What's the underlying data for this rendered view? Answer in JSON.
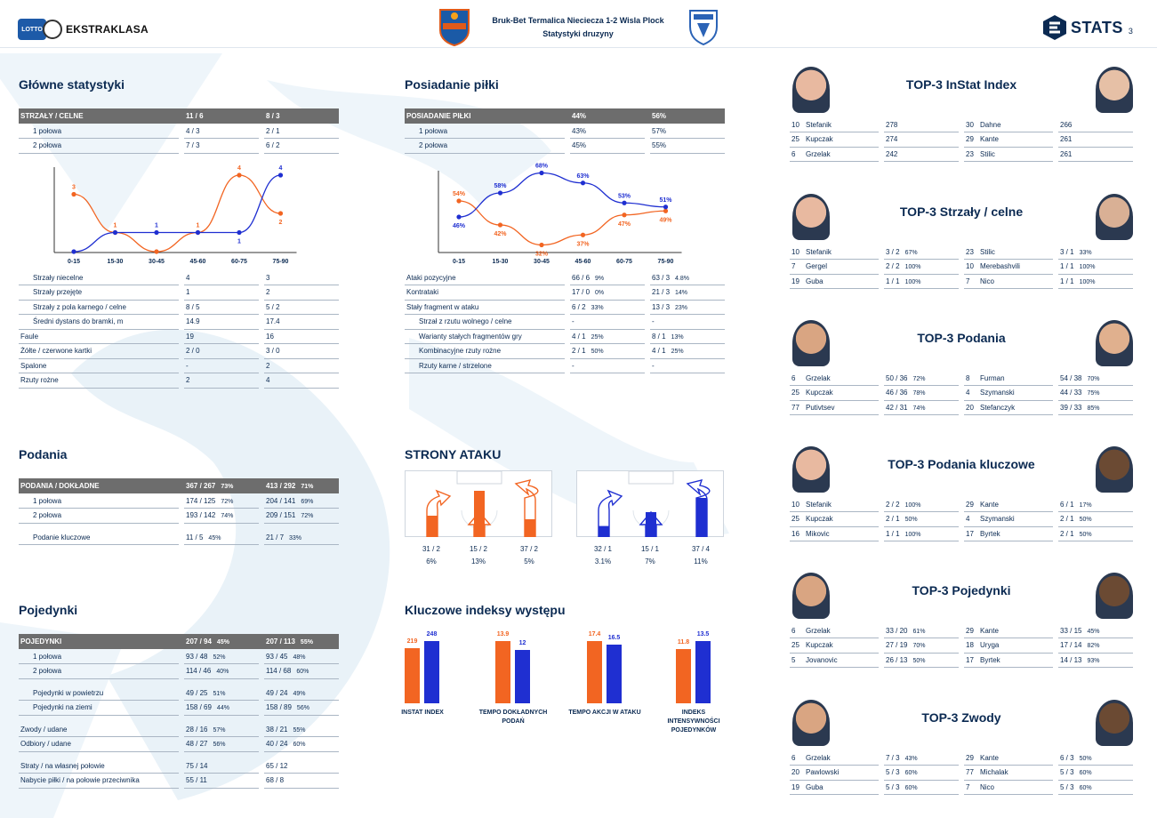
{
  "header": {
    "league": "EKSTRAKLASA",
    "lotto": "LOTTO",
    "match": "Bruk-Bet Termalica Nieciecza 1-2 Wisla Plock",
    "subtitle": "Statystyki druzyny",
    "brand": "STATS",
    "page": "3"
  },
  "colors": {
    "home": "#f26522",
    "away": "#1f2fd1",
    "head_bg": "#6d6d6d",
    "text": "#0b2a52"
  },
  "main": {
    "title": "Główne statystyki",
    "head": [
      "STRZAŁY / CELNE",
      "11 / 6",
      "8 / 3"
    ],
    "halves": [
      [
        "1 połowa",
        "4 / 3",
        "2 / 1"
      ],
      [
        "2 połowa",
        "7 / 3",
        "6 / 2"
      ]
    ],
    "rows": [
      [
        "Strzały niecelne",
        "4",
        "3",
        true
      ],
      [
        "Strzały przejęte",
        "1",
        "2",
        true
      ],
      [
        "Strzały z pola karnego / celne",
        "8 / 5",
        "5 / 2",
        true
      ],
      [
        "Średni dystans do bramki, m",
        "14.9",
        "17.4",
        true
      ],
      [
        "Faule",
        "19",
        "16",
        false
      ],
      [
        "Żółte / czerwone kartki",
        "2 / 0",
        "3 / 0",
        false
      ],
      [
        "Spalone",
        "-",
        "2",
        false
      ],
      [
        "Rzuty rożne",
        "2",
        "4",
        false
      ]
    ]
  },
  "shots_chart": {
    "type": "line",
    "x": [
      "0-15",
      "15-30",
      "30-45",
      "45-60",
      "60-75",
      "75-90"
    ],
    "series": [
      {
        "values": [
          3,
          1,
          0,
          1,
          4,
          2
        ]
      },
      {
        "values": [
          0,
          1,
          1,
          1,
          1,
          4
        ]
      }
    ],
    "labels_home": [
      "3",
      "1",
      "",
      "1",
      "4",
      "2"
    ],
    "labels_away": [
      "",
      "",
      "1",
      "",
      "1",
      "4"
    ],
    "ylim": [
      0,
      4
    ]
  },
  "possession": {
    "title": "Posiadanie piłki",
    "head": [
      "POSIADANIE PIŁKI",
      "44%",
      "56%"
    ],
    "halves": [
      [
        "1 połowa",
        "43%",
        "57%"
      ],
      [
        "2 połowa",
        "45%",
        "55%"
      ]
    ],
    "rows": [
      [
        "Ataki pozycyjne",
        "66 / 6",
        "9%",
        "63 / 3",
        "4.8%",
        false
      ],
      [
        "Kontrataki",
        "17 / 0",
        "0%",
        "21 / 3",
        "14%",
        false
      ],
      [
        "Stały fragment w ataku",
        "6 / 2",
        "33%",
        "13 / 3",
        "23%",
        false
      ],
      [
        "Strzał z rzutu wolnego / celne",
        "-",
        "",
        "-",
        "",
        true
      ],
      [
        "Warianty stałych fragmentów gry",
        "4 / 1",
        "25%",
        "8 / 1",
        "13%",
        true
      ],
      [
        "Kombinacyjne rzuty rożne",
        "2 / 1",
        "50%",
        "4 / 1",
        "25%",
        true
      ],
      [
        "Rzuty karne / strzelone",
        "-",
        "",
        "-",
        "",
        true
      ]
    ]
  },
  "poss_chart": {
    "type": "line",
    "x": [
      "0-15",
      "15-30",
      "30-45",
      "45-60",
      "60-75",
      "75-90"
    ],
    "series": [
      {
        "values": [
          54,
          42,
          32,
          37,
          47,
          49
        ]
      },
      {
        "values": [
          46,
          58,
          68,
          63,
          53,
          51
        ]
      }
    ],
    "labels_home": [
      "54%",
      "42%",
      "32%",
      "37%",
      "47%",
      "49%"
    ],
    "labels_away": [
      "46%",
      "58%",
      "68%",
      "63%",
      "53%",
      "51%"
    ],
    "ylim": [
      30,
      70
    ]
  },
  "passes": {
    "title": "Podania",
    "head": [
      "PODANIA / DOKŁADNE",
      "367 / 267",
      "73%",
      "413 / 292",
      "71%"
    ],
    "rows": [
      [
        "1 połowa",
        "174 / 125",
        "72%",
        "204 / 141",
        "69%"
      ],
      [
        "2 połowa",
        "193 / 142",
        "74%",
        "209 / 151",
        "72%"
      ]
    ],
    "key": [
      "Podanie kluczowe",
      "11 / 5",
      "45%",
      "21 / 7",
      "33%"
    ]
  },
  "duels": {
    "title": "Pojedynki",
    "head": [
      "POJEDYNKI",
      "207 / 94",
      "45%",
      "207 / 113",
      "55%"
    ],
    "groups": [
      [
        [
          "1 połowa",
          "93 / 48",
          "52%",
          "93 / 45",
          "48%",
          true
        ],
        [
          "2 połowa",
          "114 / 46",
          "40%",
          "114 / 68",
          "60%",
          true
        ]
      ],
      [
        [
          "Pojedynki w powietrzu",
          "49 / 25",
          "51%",
          "49 / 24",
          "49%",
          true
        ],
        [
          "Pojedynki na ziemi",
          "158 / 69",
          "44%",
          "158 / 89",
          "56%",
          true
        ]
      ],
      [
        [
          "Zwody / udane",
          "28 / 16",
          "57%",
          "38 / 21",
          "55%",
          false
        ],
        [
          "Odbiory / udane",
          "48 / 27",
          "56%",
          "40 / 24",
          "60%",
          false
        ]
      ],
      [
        [
          "Straty / na własnej połowie",
          "75 / 14",
          "",
          "65 / 12",
          "",
          false
        ],
        [
          "Nabycie piłki / na połowie przeciwnika",
          "55 / 11",
          "",
          "68 / 8",
          "",
          false
        ]
      ]
    ]
  },
  "attack_sides": {
    "title": "STRONY ATAKU",
    "home": [
      {
        "v": "31 / 2",
        "p": "6%",
        "share": 6
      },
      {
        "v": "15 / 2",
        "p": "13%",
        "share": 13
      },
      {
        "v": "37 / 2",
        "p": "5%",
        "share": 5
      }
    ],
    "away": [
      {
        "v": "32 / 1",
        "p": "3.1%",
        "share": 3.1
      },
      {
        "v": "15 / 1",
        "p": "7%",
        "share": 7
      },
      {
        "v": "37 / 4",
        "p": "11%",
        "share": 11
      }
    ]
  },
  "indexes": {
    "title": "Kluczowe indeksy występu",
    "items": [
      {
        "name": "INSTAT INDEX",
        "home": 219,
        "away": 248,
        "hl": "219",
        "al": "248"
      },
      {
        "name": "TEMPO DOKŁADNYCH PODAŃ",
        "home": 13.9,
        "away": 12,
        "hl": "13.9",
        "al": "12"
      },
      {
        "name": "TEMPO AKCJI W ATAKU",
        "home": 17.4,
        "away": 16.5,
        "hl": "17.4",
        "al": "16.5"
      },
      {
        "name": "INDEKS INTENSYWNOŚCI POJEDYNKÓW",
        "home": 11.8,
        "away": 13.5,
        "hl": "11.8",
        "al": "13.5"
      }
    ]
  },
  "top3": [
    {
      "title": "TOP-3 InStat Index",
      "rows": [
        [
          "10",
          "Stefanik",
          "278",
          "",
          "30",
          "Dahne",
          "266",
          ""
        ],
        [
          "25",
          "Kupczak",
          "274",
          "",
          "29",
          "Kante",
          "261",
          ""
        ],
        [
          "6",
          "Grzelak",
          "242",
          "",
          "23",
          "Stilic",
          "261",
          ""
        ]
      ]
    },
    {
      "title": "TOP-3 Strzały / celne",
      "rows": [
        [
          "10",
          "Stefanik",
          "3 / 2",
          "67%",
          "23",
          "Stilic",
          "3 / 1",
          "33%"
        ],
        [
          "7",
          "Gergel",
          "2 / 2",
          "100%",
          "10",
          "Merebashvili",
          "1 / 1",
          "100%"
        ],
        [
          "19",
          "Guba",
          "1 / 1",
          "100%",
          "7",
          "Nico",
          "1 / 1",
          "100%"
        ]
      ]
    },
    {
      "title": "TOP-3 Podania",
      "rows": [
        [
          "6",
          "Grzelak",
          "50 / 36",
          "72%",
          "8",
          "Furman",
          "54 / 38",
          "70%"
        ],
        [
          "25",
          "Kupczak",
          "46 / 36",
          "78%",
          "4",
          "Szymanski",
          "44 / 33",
          "75%"
        ],
        [
          "77",
          "Putivtsev",
          "42 / 31",
          "74%",
          "20",
          "Stefanczyk",
          "39 / 33",
          "85%"
        ]
      ]
    },
    {
      "title": "TOP-3 Podania kluczowe",
      "rows": [
        [
          "10",
          "Stefanik",
          "2 / 2",
          "100%",
          "29",
          "Kante",
          "6 / 1",
          "17%"
        ],
        [
          "25",
          "Kupczak",
          "2 / 1",
          "50%",
          "4",
          "Szymanski",
          "2 / 1",
          "50%"
        ],
        [
          "16",
          "Mikovic",
          "1 / 1",
          "100%",
          "17",
          "Byrtek",
          "2 / 1",
          "50%"
        ]
      ]
    },
    {
      "title": "TOP-3 Pojedynki",
      "rows": [
        [
          "6",
          "Grzelak",
          "33 / 20",
          "61%",
          "29",
          "Kante",
          "33 / 15",
          "45%"
        ],
        [
          "25",
          "Kupczak",
          "27 / 19",
          "70%",
          "18",
          "Uryga",
          "17 / 14",
          "82%"
        ],
        [
          "5",
          "Jovanovic",
          "26 / 13",
          "50%",
          "17",
          "Byrtek",
          "14 / 13",
          "93%"
        ]
      ]
    },
    {
      "title": "TOP-3 Zwody",
      "rows": [
        [
          "6",
          "Grzelak",
          "7 / 3",
          "43%",
          "29",
          "Kante",
          "6 / 3",
          "50%"
        ],
        [
          "20",
          "Pawlowski",
          "5 / 3",
          "60%",
          "77",
          "Michalak",
          "5 / 3",
          "60%"
        ],
        [
          "19",
          "Guba",
          "5 / 3",
          "60%",
          "7",
          "Nico",
          "5 / 3",
          "60%"
        ]
      ]
    }
  ]
}
